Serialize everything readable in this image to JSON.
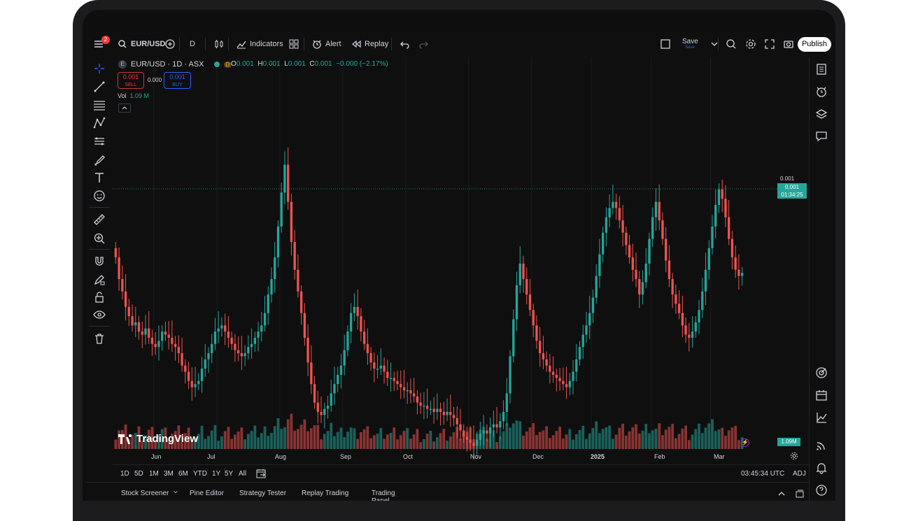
{
  "topbar": {
    "menu_badge": "2",
    "symbol": "EUR/USD",
    "interval": "D",
    "indicators_label": "Indicators",
    "alert_label": "Alert",
    "replay_label": "Replay",
    "save_label": "Save",
    "save_sub": "Save",
    "publish_label": "Publish"
  },
  "legend": {
    "exchange_badge": "E",
    "title": "EUR/USD · 1D · ASX",
    "interval_badge": "D",
    "open_label": "O",
    "open_value": "0.001",
    "high_label": "H",
    "high_value": "0.001",
    "low_label": "L",
    "low_value": "0.001",
    "close_label": "C",
    "close_value": "0.001",
    "change": "−0.000 (−2.17%)"
  },
  "trade": {
    "sell_price": "0.001",
    "sell_label": "SELL",
    "spread": "0.000",
    "buy_price": "0.001",
    "buy_label": "BUY"
  },
  "volume": {
    "label": "Vol",
    "value": "1.09 M",
    "tag": "1.09M"
  },
  "price_scale": {
    "price_top": "0.001",
    "price_tag": "0.001",
    "countdown": "01:34:25"
  },
  "xaxis": {
    "labels": [
      "Jun",
      "Jul",
      "Aug",
      "Sep",
      "Oct",
      "Nov",
      "Dec",
      "2025",
      "Feb",
      "Mar"
    ]
  },
  "ranges": {
    "items": [
      "1D",
      "5D",
      "1M",
      "3M",
      "6M",
      "YTD",
      "1Y",
      "5Y",
      "All"
    ],
    "time": "03:45:34 UTC",
    "adj": "ADJ"
  },
  "bottom_tabs": [
    "Stock Screener",
    "Pine Editor",
    "Strategy Tester",
    "Replay Trading",
    "Trading Panel"
  ],
  "logo": {
    "text": "TradingView"
  },
  "colors": {
    "up": "#26a69a",
    "down": "#ef5350",
    "background": "#0f0f0f",
    "accent": "#2962ff"
  },
  "chart_data": {
    "type": "candlestick",
    "x_labels": [
      "Jun",
      "Jul",
      "Aug",
      "Sep",
      "Oct",
      "Nov",
      "Dec",
      "2025",
      "Feb",
      "Mar"
    ],
    "x_label_indices": [
      12,
      31,
      50,
      69,
      88,
      107,
      126,
      144,
      162,
      180
    ],
    "close_series": [
      0.62,
      0.55,
      0.51,
      0.46,
      0.43,
      0.4,
      0.41,
      0.38,
      0.37,
      0.39,
      0.36,
      0.34,
      0.33,
      0.35,
      0.38,
      0.37,
      0.36,
      0.34,
      0.33,
      0.31,
      0.27,
      0.25,
      0.22,
      0.2,
      0.21,
      0.22,
      0.26,
      0.29,
      0.31,
      0.34,
      0.38,
      0.39,
      0.4,
      0.38,
      0.36,
      0.34,
      0.32,
      0.31,
      0.3,
      0.31,
      0.33,
      0.34,
      0.36,
      0.38,
      0.4,
      0.44,
      0.5,
      0.55,
      0.62,
      0.72,
      0.83,
      0.92,
      0.8,
      0.67,
      0.58,
      0.51,
      0.44,
      0.36,
      0.28,
      0.21,
      0.15,
      0.12,
      0.11,
      0.13,
      0.14,
      0.18,
      0.21,
      0.24,
      0.27,
      0.32,
      0.38,
      0.44,
      0.46,
      0.43,
      0.38,
      0.34,
      0.31,
      0.28,
      0.26,
      0.26,
      0.27,
      0.25,
      0.23,
      0.23,
      0.22,
      0.21,
      0.2,
      0.19,
      0.19,
      0.18,
      0.17,
      0.15,
      0.14,
      0.14,
      0.13,
      0.13,
      0.12,
      0.13,
      0.12,
      0.11,
      0.12,
      0.11,
      0.1,
      0.08,
      0.06,
      0.04,
      0.03,
      0.02,
      0.01,
      0.03,
      0.05,
      0.06,
      0.05,
      0.07,
      0.08,
      0.07,
      0.09,
      0.12,
      0.18,
      0.3,
      0.42,
      0.53,
      0.6,
      0.55,
      0.5,
      0.45,
      0.4,
      0.35,
      0.31,
      0.29,
      0.27,
      0.25,
      0.24,
      0.23,
      0.22,
      0.21,
      0.2,
      0.22,
      0.25,
      0.29,
      0.33,
      0.37,
      0.4,
      0.44,
      0.49,
      0.56,
      0.63,
      0.7,
      0.75,
      0.78,
      0.8,
      0.78,
      0.74,
      0.7,
      0.66,
      0.62,
      0.58,
      0.55,
      0.5,
      0.54,
      0.6,
      0.68,
      0.75,
      0.8,
      0.74,
      0.68,
      0.61,
      0.55,
      0.5,
      0.47,
      0.44,
      0.4,
      0.37,
      0.36,
      0.38,
      0.41,
      0.45,
      0.51,
      0.58,
      0.65,
      0.72,
      0.79,
      0.84,
      0.81,
      0.75,
      0.68,
      0.62,
      0.58,
      0.56,
      0.57
    ]
  }
}
